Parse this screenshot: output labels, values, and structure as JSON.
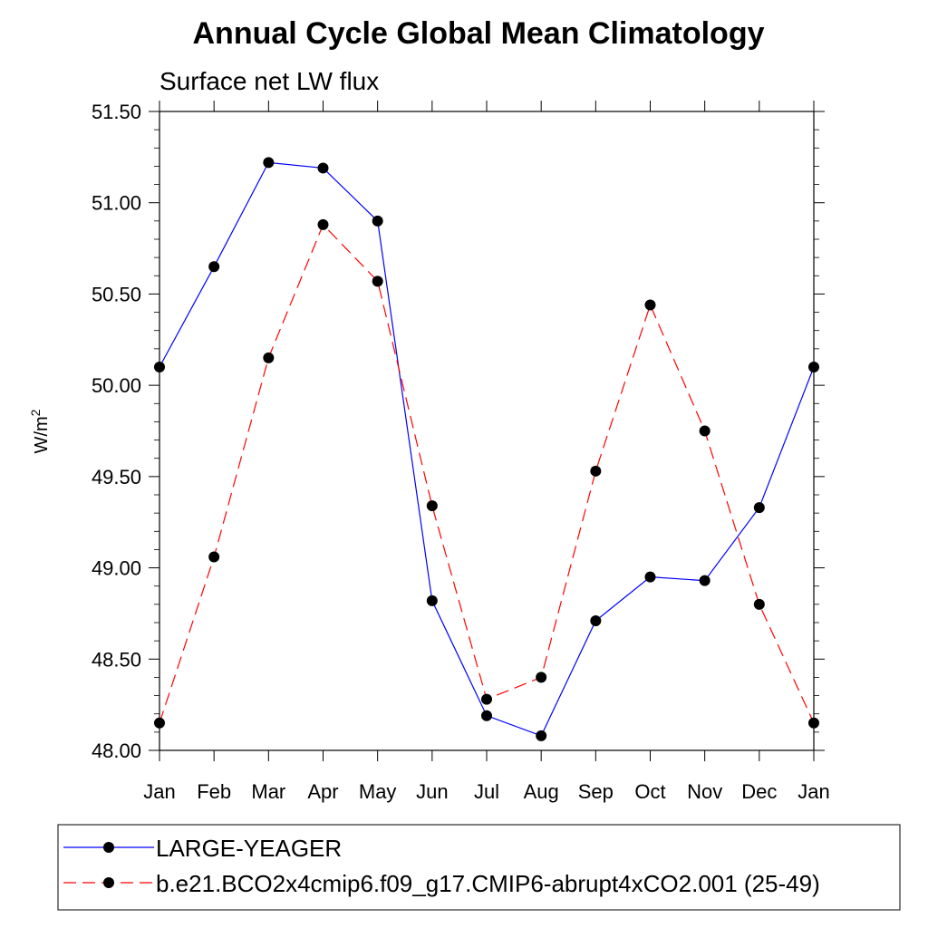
{
  "chart_data": {
    "type": "line",
    "title": "Annual Cycle Global Mean Climatology",
    "subtitle": "Surface net LW flux",
    "xlabel": "",
    "ylabel": "W/m",
    "ylabel_superscript": "2",
    "ylim": [
      48.0,
      51.5
    ],
    "yticks": [
      "48.00",
      "48.50",
      "49.00",
      "49.50",
      "50.00",
      "50.50",
      "51.00",
      "51.50"
    ],
    "categories": [
      "Jan",
      "Feb",
      "Mar",
      "Apr",
      "May",
      "Jun",
      "Jul",
      "Aug",
      "Sep",
      "Oct",
      "Nov",
      "Dec",
      "Jan"
    ],
    "series": [
      {
        "name": "LARGE-YEAGER",
        "color": "#0000ff",
        "dash": "solid",
        "values": [
          50.1,
          50.65,
          51.22,
          51.19,
          50.9,
          48.82,
          48.19,
          48.08,
          48.71,
          48.95,
          48.93,
          49.33,
          50.1
        ]
      },
      {
        "name": "b.e21.BCO2x4cmip6.f09_g17.CMIP6-abrupt4xCO2.001 (25-49)",
        "color": "#ff0000",
        "dash": "dashed",
        "values": [
          48.15,
          49.06,
          50.15,
          50.88,
          50.57,
          49.34,
          48.28,
          48.4,
          49.53,
          50.44,
          49.75,
          48.8,
          48.15
        ]
      }
    ],
    "legend_position": "bottom"
  }
}
